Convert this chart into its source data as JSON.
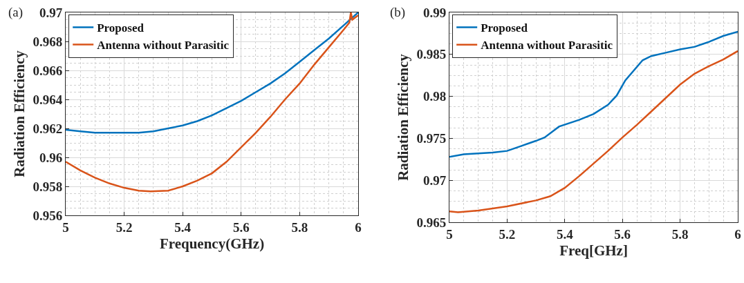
{
  "chart_data": [
    {
      "type": "line",
      "xlabel": "Frequency(GHz)",
      "ylabel": "Radiation Efficiency",
      "annotations": [
        "(a)"
      ],
      "xlim": [
        5,
        6
      ],
      "xticks": [
        5,
        5.2,
        5.4,
        5.6,
        5.8,
        6
      ],
      "ylim": [
        0.956,
        0.97
      ],
      "yticks": [
        0.956,
        0.958,
        0.96,
        0.962,
        0.964,
        0.966,
        0.968,
        0.97
      ],
      "grid": true,
      "legend": "top left",
      "line_style": "solid",
      "marker": "none",
      "series": [
        {
          "name": "Proposed",
          "color": "#0072bd",
          "x": [
            5,
            5.05,
            5.1,
            5.15,
            5.2,
            5.25,
            5.3,
            5.35,
            5.4,
            5.45,
            5.5,
            5.55,
            5.6,
            5.65,
            5.7,
            5.75,
            5.8,
            5.85,
            5.9,
            5.95,
            6
          ],
          "values": [
            0.9619,
            0.9618,
            0.9617,
            0.9617,
            0.9617,
            0.9617,
            0.9618,
            0.962,
            0.9622,
            0.9625,
            0.9629,
            0.9634,
            0.9639,
            0.9645,
            0.9651,
            0.9658,
            0.9666,
            0.9674,
            0.9682,
            0.9691,
            0.97
          ]
        },
        {
          "name": "Antenna without Parasitic",
          "color": "#d95319",
          "x": [
            5,
            5.05,
            5.1,
            5.15,
            5.2,
            5.25,
            5.29,
            5.35,
            5.4,
            5.45,
            5.5,
            5.55,
            5.6,
            5.65,
            5.7,
            5.75,
            5.8,
            5.85,
            5.9,
            5.95,
            5.97,
            5.975,
            5.98,
            6
          ],
          "values": [
            0.9597,
            0.9591,
            0.9586,
            0.9582,
            0.9579,
            0.9577,
            0.95765,
            0.9577,
            0.958,
            0.9584,
            0.9589,
            0.9597,
            0.9607,
            0.9617,
            0.9628,
            0.964,
            0.9651,
            0.9664,
            0.9676,
            0.9688,
            0.9693,
            0.97,
            0.9695,
            0.9698
          ]
        }
      ]
    },
    {
      "type": "line",
      "xlabel": "Freq[GHz]",
      "ylabel": "Radiation Efficiency",
      "annotations": [
        "(b)"
      ],
      "xlim": [
        5,
        6
      ],
      "xticks": [
        5,
        5.2,
        5.4,
        5.6,
        5.8,
        6
      ],
      "ylim": [
        0.965,
        0.99
      ],
      "yticks": [
        0.965,
        0.97,
        0.975,
        0.98,
        0.985,
        0.99
      ],
      "grid": true,
      "legend": "top left",
      "line_style": "solid",
      "marker": "none",
      "series": [
        {
          "name": "Proposed",
          "color": "#0072bd",
          "x": [
            5,
            5.05,
            5.1,
            5.15,
            5.2,
            5.25,
            5.3,
            5.33,
            5.38,
            5.45,
            5.5,
            5.55,
            5.58,
            5.61,
            5.67,
            5.7,
            5.75,
            5.8,
            5.85,
            5.9,
            5.95,
            6
          ],
          "values": [
            0.9728,
            0.9731,
            0.9732,
            0.9733,
            0.9735,
            0.9741,
            0.9747,
            0.9751,
            0.9764,
            0.9772,
            0.9779,
            0.979,
            0.9801,
            0.9819,
            0.9843,
            0.9848,
            0.9852,
            0.9856,
            0.9859,
            0.9865,
            0.9872,
            0.9877
          ]
        },
        {
          "name": "Antenna without Parasitic",
          "color": "#d95319",
          "x": [
            5,
            5.03,
            5.1,
            5.2,
            5.3,
            5.35,
            5.4,
            5.45,
            5.5,
            5.55,
            5.6,
            5.65,
            5.7,
            5.75,
            5.8,
            5.85,
            5.9,
            5.95,
            6
          ],
          "values": [
            0.9663,
            0.9662,
            0.9664,
            0.9669,
            0.9676,
            0.9681,
            0.9691,
            0.9705,
            0.972,
            0.9735,
            0.9751,
            0.9766,
            0.9782,
            0.9798,
            0.9814,
            0.9827,
            0.9836,
            0.9844,
            0.9854
          ]
        }
      ]
    }
  ]
}
